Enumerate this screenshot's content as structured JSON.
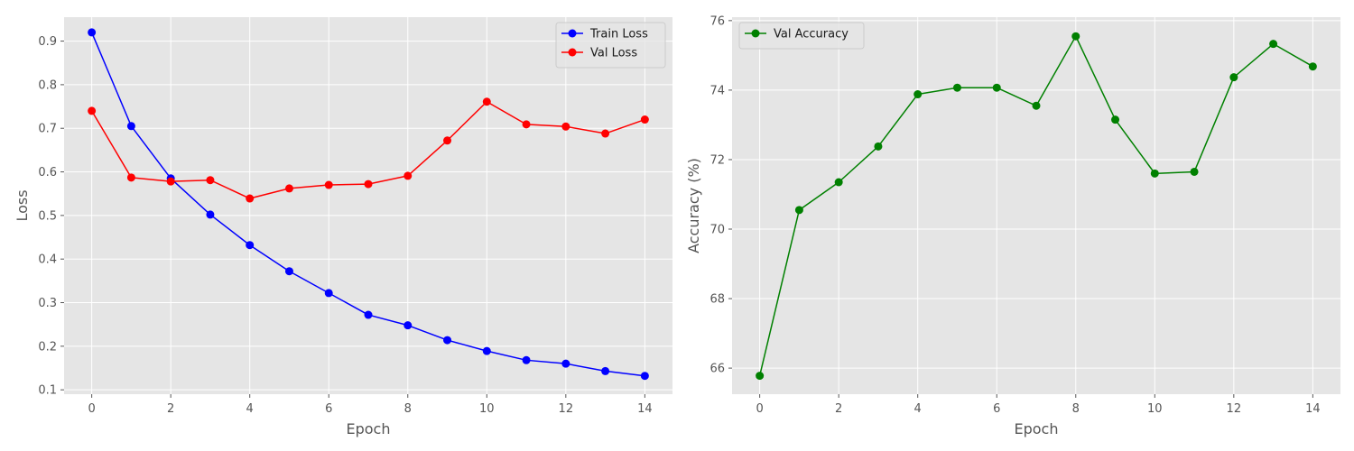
{
  "chart_data": [
    {
      "type": "line",
      "xlabel": "Epoch",
      "ylabel": "Loss",
      "xlim": [
        -0.7,
        14.7
      ],
      "ylim": [
        0.09,
        0.955
      ],
      "xticks": [
        0,
        2,
        4,
        6,
        8,
        10,
        12,
        14
      ],
      "yticks": [
        0.1,
        0.2,
        0.3,
        0.4,
        0.5,
        0.6,
        0.7,
        0.8,
        0.9
      ],
      "ytick_labels": [
        "0.1",
        "0.2",
        "0.3",
        "0.4",
        "0.5",
        "0.6",
        "0.7",
        "0.8",
        "0.9"
      ],
      "grid": true,
      "legend": "top-right",
      "x": [
        0,
        1,
        2,
        3,
        4,
        5,
        6,
        7,
        8,
        9,
        10,
        11,
        12,
        13,
        14
      ],
      "series": [
        {
          "name": "Train Loss",
          "color": "#0000ff",
          "values": [
            0.92,
            0.705,
            0.585,
            0.502,
            0.432,
            0.372,
            0.322,
            0.272,
            0.248,
            0.214,
            0.189,
            0.168,
            0.16,
            0.143,
            0.132
          ]
        },
        {
          "name": "Val Loss",
          "color": "#ff0000",
          "values": [
            0.74,
            0.587,
            0.578,
            0.581,
            0.539,
            0.562,
            0.57,
            0.572,
            0.591,
            0.672,
            0.761,
            0.709,
            0.704,
            0.688,
            0.72
          ]
        }
      ]
    },
    {
      "type": "line",
      "xlabel": "Epoch",
      "ylabel": "Accuracy (%)",
      "xlim": [
        -0.7,
        14.7
      ],
      "ylim": [
        65.25,
        76.1
      ],
      "xticks": [
        0,
        2,
        4,
        6,
        8,
        10,
        12,
        14
      ],
      "yticks": [
        66,
        68,
        70,
        72,
        74,
        76
      ],
      "ytick_labels": [
        "66",
        "68",
        "70",
        "72",
        "74",
        "76"
      ],
      "grid": true,
      "legend": "top-left",
      "x": [
        0,
        1,
        2,
        3,
        4,
        5,
        6,
        7,
        8,
        9,
        10,
        11,
        12,
        13,
        14
      ],
      "series": [
        {
          "name": "Val Accuracy",
          "color": "#008000",
          "values": [
            65.78,
            70.55,
            71.35,
            72.38,
            73.88,
            74.07,
            74.07,
            73.55,
            75.55,
            73.15,
            71.6,
            71.65,
            74.37,
            75.33,
            74.68
          ]
        }
      ]
    }
  ]
}
